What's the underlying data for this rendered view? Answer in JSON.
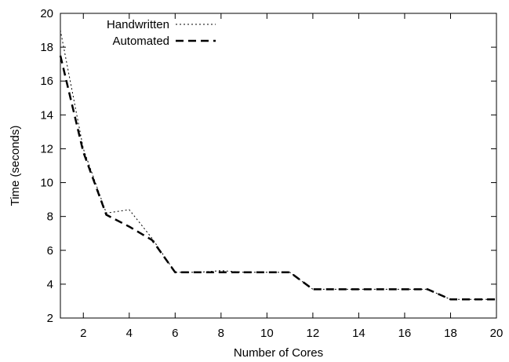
{
  "chart_data": {
    "type": "line",
    "xlabel": "Number of Cores",
    "ylabel": "Time (seconds)",
    "xlim": [
      1,
      20
    ],
    "ylim": [
      2,
      20
    ],
    "xticks": [
      2,
      4,
      6,
      8,
      10,
      12,
      14,
      16,
      18,
      20
    ],
    "yticks": [
      2,
      4,
      6,
      8,
      10,
      12,
      14,
      16,
      18,
      20
    ],
    "grid": false,
    "legend_position": "top-left",
    "series": [
      {
        "name": "Handwritten",
        "style": "dotted",
        "x": [
          1,
          2,
          3,
          4,
          5,
          6,
          7,
          8,
          9,
          10,
          11,
          12,
          13,
          14,
          15,
          16,
          17,
          18,
          19,
          20
        ],
        "y": [
          19.0,
          12.0,
          8.2,
          8.4,
          6.7,
          4.7,
          4.7,
          4.8,
          4.7,
          4.7,
          4.7,
          3.7,
          3.7,
          3.7,
          3.7,
          3.7,
          3.7,
          3.1,
          3.1,
          3.1
        ]
      },
      {
        "name": "Automated",
        "style": "dashed",
        "x": [
          1,
          2,
          3,
          4,
          5,
          6,
          7,
          8,
          9,
          10,
          11,
          12,
          13,
          14,
          15,
          16,
          17,
          18,
          19,
          20
        ],
        "y": [
          17.5,
          11.8,
          8.1,
          7.4,
          6.6,
          4.7,
          4.7,
          4.7,
          4.7,
          4.7,
          4.7,
          3.7,
          3.7,
          3.7,
          3.7,
          3.7,
          3.7,
          3.1,
          3.1,
          3.1
        ]
      }
    ]
  }
}
